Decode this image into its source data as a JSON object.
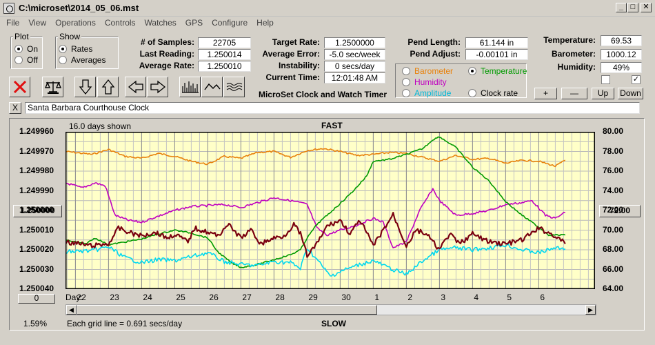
{
  "window": {
    "title": "C:\\microset\\2014_05_06.mst"
  },
  "menu": [
    "File",
    "View",
    "Operations",
    "Controls",
    "Watches",
    "GPS",
    "Configure",
    "Help"
  ],
  "plot_group": {
    "title": "Plot",
    "options": [
      {
        "label": "On",
        "checked": true
      },
      {
        "label": "Off",
        "checked": false
      }
    ]
  },
  "show_group": {
    "title": "Show",
    "options": [
      {
        "label": "Rates",
        "checked": true
      },
      {
        "label": "Averages",
        "checked": false
      }
    ]
  },
  "stats": {
    "samples_label": "# of Samples:",
    "samples": "22705",
    "last_label": "Last Reading:",
    "last": "1.250014",
    "avg_label": "Average Rate:",
    "avg": "1.250010",
    "target_label": "Target Rate:",
    "target": "1.2500000",
    "avg_err_label": "Average Error:",
    "avg_err": "-5.0 sec/week",
    "instab_label": "Instability:",
    "instab": "0 secs/day",
    "time_label": "Current Time:",
    "time": "12:01:48 AM",
    "pend_len_label": "Pend Length:",
    "pend_len": "61.144 in",
    "pend_adj_label": "Pend Adjust:",
    "pend_adj": "-0.00101 in",
    "temp_label": "Temperature:",
    "temp": "69.53",
    "baro_label": "Barometer:",
    "baro": "1000.12",
    "hum_label": "Humidity:",
    "hum": "49%"
  },
  "app_title": "MicroSet Clock and Watch Timer",
  "sensor_options": [
    {
      "label": "Barometer",
      "color": "#e8820c",
      "checked": false
    },
    {
      "label": "Temperature",
      "color": "#009a00",
      "checked": true
    },
    {
      "label": "Humidity",
      "color": "#c000c0",
      "checked": false
    },
    {
      "label": "Clock rate",
      "color": "#000000",
      "checked": false
    },
    {
      "label": "Amplitude",
      "color": "#00b8d8",
      "checked": false
    }
  ],
  "scale_buttons": {
    "plus": "+",
    "minus": "—",
    "up": "Up",
    "down": "Down"
  },
  "checkboxes": [
    {
      "checked": false
    },
    {
      "checked": true
    }
  ],
  "clock_name": "Santa Barbara Courthouse Clock",
  "close_x": "X",
  "chart_info": {
    "days_shown": "16.0 days shown",
    "fast": "FAST",
    "slow": "SLOW",
    "grid_note": "Each grid line = 0.691 secs/day",
    "percent": "1.59%",
    "day_label": "Day:",
    "left_value_box": "1.250000",
    "right_value_box": "72.00",
    "zero_box": "0"
  },
  "chart_data": {
    "type": "line",
    "x_tick_labels": [
      "22",
      "23",
      "24",
      "25",
      "26",
      "27",
      "28",
      "29",
      "30",
      "1",
      "2",
      "3",
      "4",
      "5",
      "6"
    ],
    "x_day_index": [
      0,
      1,
      2,
      3,
      4,
      5,
      6,
      7,
      8,
      9,
      10,
      11,
      12,
      13,
      14
    ],
    "xlim": [
      -0.3,
      15.7
    ],
    "y_left_ticks": [
      "1.249960",
      "1.249970",
      "1.249980",
      "1.249990",
      "1.250000",
      "1.250010",
      "1.250020",
      "1.250030",
      "1.250040"
    ],
    "y_left_range": [
      1.24996,
      1.25004
    ],
    "y_left_reversed": true,
    "y_right_ticks": [
      "80.00",
      "78.00",
      "76.00",
      "74.00",
      "72.00",
      "70.00",
      "68.00",
      "66.00",
      "64.00"
    ],
    "y_right_range": [
      64,
      80
    ],
    "grid": true,
    "background": "#ffffc8",
    "series": [
      {
        "color": "#e8820c",
        "axis": "right",
        "x": [
          -0.3,
          0.5,
          1,
          1.5,
          2,
          2.5,
          3,
          3.5,
          4,
          4.5,
          5,
          5.5,
          6,
          6.5,
          7,
          7.5,
          8,
          8.5,
          9,
          9.5,
          10,
          10.5,
          11,
          11.5,
          12,
          12.5,
          13,
          13.5,
          14,
          14.5,
          14.8
        ],
        "y": [
          78.0,
          77.7,
          78.2,
          77.5,
          77.3,
          77.8,
          77.5,
          77.0,
          76.7,
          77.5,
          77.3,
          77.9,
          78.0,
          77.4,
          78.1,
          78.3,
          78.0,
          77.6,
          77.7,
          77.9,
          77.8,
          77.4,
          77.0,
          77.6,
          77.2,
          77.3,
          76.8,
          77.1,
          77.0,
          76.5,
          77.1
        ]
      },
      {
        "color": "#c000c0",
        "axis": "right",
        "x": [
          -0.3,
          0.2,
          0.6,
          0.9,
          1.2,
          1.6,
          2.0,
          2.4,
          3.0,
          3.5,
          4.0,
          4.5,
          5.0,
          5.5,
          6.0,
          6.5,
          6.8,
          7.0,
          7.3,
          7.6,
          8.0,
          8.5,
          9.0,
          9.3,
          9.6,
          10.0,
          10.4,
          10.8,
          11.0,
          11.5,
          12.0,
          12.5,
          13.0,
          13.5,
          13.8,
          14.2,
          14.5,
          14.8
        ],
        "y": [
          74.8,
          74.3,
          74.8,
          74.5,
          71.5,
          71.0,
          70.8,
          71.3,
          72.0,
          72.4,
          72.5,
          72.6,
          72.3,
          72.8,
          73.3,
          73.0,
          72.8,
          72.6,
          70.2,
          69.5,
          70.0,
          70.5,
          71.2,
          70.8,
          68.2,
          68.8,
          72.0,
          74.2,
          73.0,
          71.5,
          71.7,
          72.0,
          72.6,
          72.8,
          73.0,
          71.5,
          71.2,
          71.8
        ]
      },
      {
        "color": "#009a00",
        "axis": "right",
        "x": [
          -0.3,
          0.3,
          0.6,
          1.0,
          1.5,
          2.0,
          2.5,
          3.0,
          3.5,
          4.0,
          4.3,
          4.7,
          5.0,
          5.5,
          6.0,
          6.5,
          6.8,
          7.0,
          7.3,
          7.6,
          8.0,
          8.4,
          8.8,
          9.0,
          9.5,
          10.0,
          10.5,
          10.8,
          11.0,
          11.5,
          12.0,
          12.5,
          13.0,
          13.5,
          14.0,
          14.3,
          14.8
        ],
        "y": [
          69.0,
          68.6,
          69.2,
          68.5,
          68.8,
          69.1,
          69.6,
          70.0,
          69.7,
          69.2,
          67.8,
          66.7,
          66.2,
          66.5,
          67.0,
          67.5,
          68.0,
          69.2,
          70.6,
          71.5,
          72.7,
          74.0,
          75.5,
          77.0,
          77.2,
          77.7,
          78.3,
          79.2,
          79.5,
          78.4,
          76.4,
          75.0,
          72.9,
          71.5,
          70.3,
          69.5,
          69.5
        ]
      },
      {
        "color": "#00d8f0",
        "axis": "right",
        "x": [
          -0.3,
          0.5,
          1.0,
          1.5,
          2.0,
          2.5,
          3.0,
          3.5,
          4.0,
          4.5,
          5.0,
          5.5,
          6.0,
          6.5,
          6.8,
          7.0,
          7.3,
          7.7,
          8.0,
          8.5,
          9.0,
          9.5,
          10.0,
          10.5,
          11.0,
          11.5,
          12.0,
          12.5,
          13.0,
          13.5,
          14.0,
          14.5,
          14.8
        ],
        "y": [
          67.8,
          67.9,
          68.3,
          67.2,
          66.7,
          67.0,
          66.9,
          67.3,
          67.7,
          66.8,
          66.5,
          66.4,
          66.8,
          66.7,
          66.1,
          68.2,
          67.0,
          65.3,
          65.8,
          66.4,
          66.9,
          66.1,
          65.5,
          66.9,
          68.0,
          68.2,
          68.0,
          68.2,
          68.5,
          68.0,
          67.7,
          68.2,
          68.1
        ]
      },
      {
        "color": "#7a0010",
        "axis": "left",
        "x": [
          -0.3,
          0.5,
          1.0,
          1.3,
          1.6,
          2.0,
          2.4,
          2.8,
          3.0,
          3.4,
          3.6,
          4.0,
          4.3,
          4.6,
          5.0,
          5.3,
          5.6,
          6.0,
          6.3,
          6.6,
          6.8,
          7.0,
          7.3,
          7.6,
          8.0,
          8.3,
          8.6,
          9.0,
          9.3,
          9.6,
          10.0,
          10.3,
          10.6,
          11.0,
          11.3,
          11.6,
          12.0,
          12.5,
          13.0,
          13.5,
          14.0,
          14.5,
          14.8
        ],
        "y": [
          1.250016,
          1.250018,
          1.250017,
          1.250009,
          1.250011,
          1.250013,
          1.250011,
          1.250014,
          1.250012,
          1.250016,
          1.250009,
          1.250011,
          1.250013,
          1.250007,
          1.250014,
          1.25001,
          1.250017,
          1.250014,
          1.250013,
          1.250007,
          1.250012,
          1.250023,
          1.250017,
          1.250008,
          1.250005,
          1.250012,
          1.250005,
          1.250018,
          1.25001,
          1.250002,
          1.250018,
          1.25001,
          1.250012,
          1.25002,
          1.250012,
          1.250017,
          1.250012,
          1.250016,
          1.250017,
          1.250015,
          1.250009,
          1.250013,
          1.250017
        ]
      }
    ]
  }
}
